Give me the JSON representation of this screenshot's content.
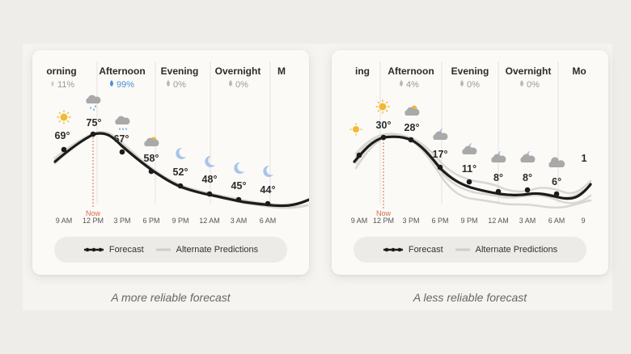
{
  "colors": {
    "page_bg": "#efedea",
    "card_bg": "#fbfaf7",
    "forecast_line": "#1c1c1c",
    "alternate_line": "#cfcdc9",
    "now_marker": "#d86a4a",
    "rain_accent": "#4a8fd6"
  },
  "legend": {
    "forecast": "Forecast",
    "alternate": "Alternate Predictions"
  },
  "now_label": "Now",
  "x_ticks": [
    "9 AM",
    "12 PM",
    "3 PM",
    "6 PM",
    "9 PM",
    "12 AM",
    "3 AM",
    "6 AM",
    "9"
  ],
  "panels": [
    {
      "caption": "A more reliable forecast",
      "periods": [
        {
          "title": "orning",
          "precip": "11%",
          "highlight": false
        },
        {
          "title": "Afternoon",
          "precip": "99%",
          "highlight": true
        },
        {
          "title": "Evening",
          "precip": "0%",
          "highlight": false
        },
        {
          "title": "Overnight",
          "precip": "0%",
          "highlight": false
        },
        {
          "title": "M",
          "precip": "",
          "highlight": false
        }
      ],
      "points": [
        {
          "time": "9 AM",
          "temp": "69°",
          "icon": "sun-icon"
        },
        {
          "time": "12 PM",
          "temp": "75°",
          "icon": "rain-cloud-icon"
        },
        {
          "time": "3 PM",
          "temp": "67°",
          "icon": "rain-cloud-icon"
        },
        {
          "time": "6 PM",
          "temp": "58°",
          "icon": "partly-cloudy-icon"
        },
        {
          "time": "9 PM",
          "temp": "52°",
          "icon": "moon-icon"
        },
        {
          "time": "12 AM",
          "temp": "48°",
          "icon": "moon-icon"
        },
        {
          "time": "3 AM",
          "temp": "45°",
          "icon": "moon-icon"
        },
        {
          "time": "6 AM",
          "temp": "44°",
          "icon": "moon-icon"
        }
      ]
    },
    {
      "caption": "A less reliable forecast",
      "periods": [
        {
          "title": "ing",
          "precip": "",
          "highlight": false
        },
        {
          "title": "Afternoon",
          "precip": "4%",
          "highlight": false
        },
        {
          "title": "Evening",
          "precip": "0%",
          "highlight": false
        },
        {
          "title": "Overnight",
          "precip": "0%",
          "highlight": false
        },
        {
          "title": "Mo",
          "precip": "",
          "highlight": false
        }
      ],
      "points": [
        {
          "time": "9 AM",
          "temp": "",
          "icon": "sun-icon"
        },
        {
          "time": "12 PM",
          "temp": "30°",
          "icon": "sun-icon"
        },
        {
          "time": "3 PM",
          "temp": "28°",
          "icon": "partly-cloudy-icon"
        },
        {
          "time": "6 PM",
          "temp": "17°",
          "icon": "night-cloud-icon"
        },
        {
          "time": "9 PM",
          "temp": "11°",
          "icon": "night-cloud-icon"
        },
        {
          "time": "12 AM",
          "temp": "8°",
          "icon": "night-cloud-icon"
        },
        {
          "time": "3 AM",
          "temp": "8°",
          "icon": "night-cloud-icon"
        },
        {
          "time": "6 AM",
          "temp": "6°",
          "icon": "cloud-icon"
        },
        {
          "time": "9",
          "temp": "1",
          "icon": ""
        }
      ]
    }
  ]
}
